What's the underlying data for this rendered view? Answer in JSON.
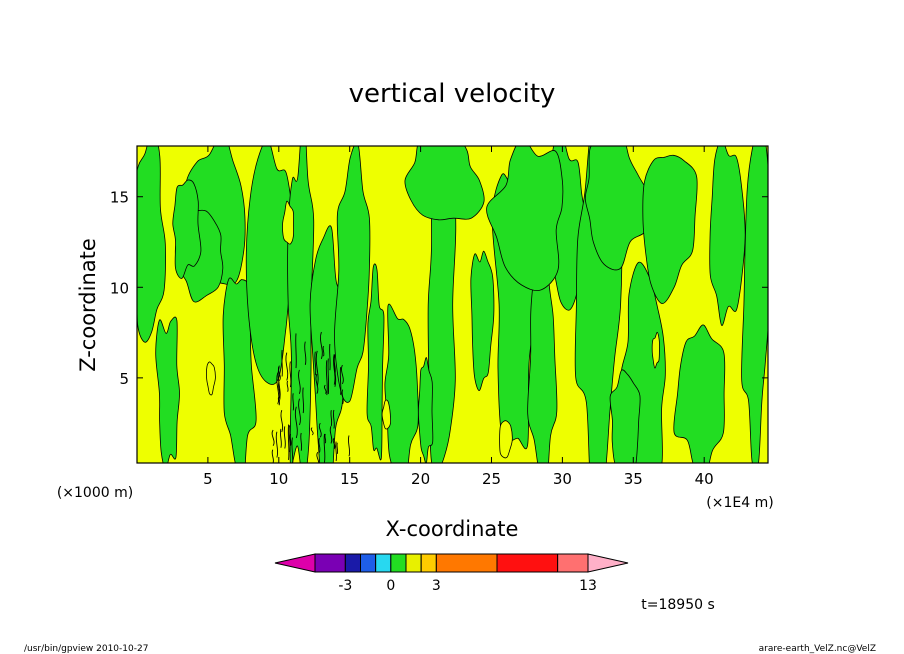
{
  "chart_data": {
    "type": "heatmap",
    "title": "vertical velocity",
    "xlabel": "X-coordinate",
    "ylabel": "Z-coordinate",
    "x_unit_label": "(×1E4 m)",
    "y_unit_label": "(×1000 m)",
    "xlim": [
      0,
      44.5
    ],
    "ylim": [
      0.3,
      17.8
    ],
    "x_ticks": [
      5,
      10,
      15,
      20,
      25,
      30,
      35,
      40
    ],
    "y_ticks": [
      5,
      10,
      15
    ],
    "x_tick_labels": [
      "5",
      "10",
      "15",
      "20",
      "25",
      "30",
      "35",
      "40"
    ],
    "y_tick_labels": [
      "5",
      "10",
      "15"
    ],
    "legend": "colorbar-bottom",
    "colorbar": {
      "levels": [
        -3,
        -2,
        -1,
        0,
        1,
        2,
        3,
        7,
        11,
        13
      ],
      "tick_labels": [
        "-3",
        "0",
        "3",
        "13"
      ],
      "tick_values": [
        -3,
        0,
        3,
        13
      ],
      "colors": [
        "#dd00aa",
        "#7a00b4",
        "#1a1aa8",
        "#1e5ee8",
        "#28d8f0",
        "#22dd22",
        "#e8f000",
        "#ffcc00",
        "#ff7800",
        "#ff1010",
        "#ff7070",
        "#ffb0c8"
      ]
    },
    "field_colors": {
      "positive": "#eeff00",
      "negative": "#22dd22",
      "contour": "#000000"
    },
    "annotation": "t=18950 s"
  },
  "footer": {
    "left": "/usr/bin/gpview   2010-10-27",
    "right": "arare-earth_VelZ.nc@VelZ"
  }
}
